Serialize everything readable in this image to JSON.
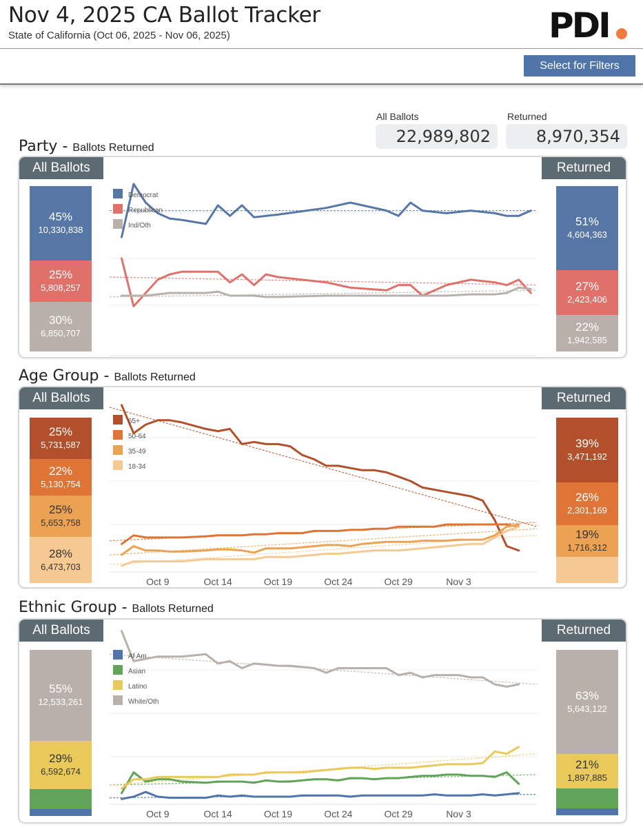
{
  "header": {
    "title": "Nov 4, 2025 CA Ballot Tracker",
    "subtitle": "State of California (Oct 06, 2025 - Nov 06, 2025)",
    "logo_text": "PDI"
  },
  "filter_button": "Select for Filters",
  "kpis": {
    "all_label": "All Ballots",
    "all_value": "22,989,802",
    "returned_label": "Returned",
    "returned_value": "8,970,354"
  },
  "colors": {
    "accent": "#4e74a8",
    "tag_bg": "#5c6a72",
    "logo_dot": "#f07b3f"
  },
  "sections": [
    {
      "title": "Party",
      "subtitle": "Ballots Returned",
      "all_tag": "All Ballots",
      "returned_tag": "Returned",
      "all_segments": [
        {
          "pct": "45%",
          "count": "10,330,838",
          "color": "#5677a6",
          "share": 0.45
        },
        {
          "pct": "25%",
          "count": "5,808,257",
          "color": "#e0706a",
          "share": 0.25
        },
        {
          "pct": "30%",
          "count": "6,850,707",
          "color": "#b9b0ab",
          "share": 0.3
        }
      ],
      "returned_segments": [
        {
          "pct": "51%",
          "count": "4,604,363",
          "color": "#5677a6",
          "share": 0.51
        },
        {
          "pct": "27%",
          "count": "2,423,406",
          "color": "#e0706a",
          "share": 0.27
        },
        {
          "pct": "22%",
          "count": "1,942,585",
          "color": "#b9b0ab",
          "share": 0.22
        }
      ]
    },
    {
      "title": "Age Group",
      "subtitle": "Ballots Returned",
      "all_tag": "All Ballots",
      "returned_tag": "Returned",
      "all_segments": [
        {
          "pct": "25%",
          "count": "5,731,587",
          "color": "#b3502c",
          "share": 0.25
        },
        {
          "pct": "22%",
          "count": "5,130,754",
          "color": "#de7436",
          "share": 0.22
        },
        {
          "pct": "25%",
          "count": "5,653,758",
          "color": "#eca253",
          "share": 0.25
        },
        {
          "pct": "28%",
          "count": "6,473,703",
          "color": "#f6c992",
          "share": 0.28
        }
      ],
      "returned_segments": [
        {
          "pct": "39%",
          "count": "3,471,192",
          "color": "#b3502c",
          "share": 0.39
        },
        {
          "pct": "26%",
          "count": "2,301,169",
          "color": "#de7436",
          "share": 0.26
        },
        {
          "pct": "19%",
          "count": "1,716,312",
          "color": "#eca253",
          "share": 0.19
        },
        {
          "pct": "",
          "count": "",
          "color": "#f6c992",
          "share": 0.16
        }
      ]
    },
    {
      "title": "Ethnic Group",
      "subtitle": "Ballots Returned",
      "all_tag": "All Ballots",
      "returned_tag": "Returned",
      "all_segments": [
        {
          "pct": "55%",
          "count": "12,533,261",
          "color": "#b9b0ab",
          "share": 0.55
        },
        {
          "pct": "29%",
          "count": "6,592,674",
          "color": "#e9c95a",
          "share": 0.29
        },
        {
          "pct": "",
          "count": "",
          "color": "#62a35a",
          "share": 0.12
        },
        {
          "pct": "",
          "count": "",
          "color": "#4f75ab",
          "share": 0.04
        }
      ],
      "returned_segments": [
        {
          "pct": "63%",
          "count": "5,643,122",
          "color": "#b9b0ab",
          "share": 0.63
        },
        {
          "pct": "21%",
          "count": "1,897,885",
          "color": "#e9c95a",
          "share": 0.21
        },
        {
          "pct": "",
          "count": "",
          "color": "#62a35a",
          "share": 0.12
        },
        {
          "pct": "",
          "count": "",
          "color": "#4f75ab",
          "share": 0.04
        }
      ]
    }
  ],
  "chart_data": [
    {
      "type": "line",
      "title": "Party",
      "x": [
        6,
        7,
        8,
        9,
        10,
        11,
        13,
        14,
        15,
        16,
        17,
        18,
        19,
        23,
        25,
        28,
        29,
        30,
        31,
        33,
        35,
        37,
        38,
        39,
        40
      ],
      "xticks": [
        "Oct 9",
        "Oct 14",
        "Oct 19",
        "Oct 24",
        "Oct 29",
        "Nov 3"
      ],
      "tick_positions": [
        9,
        14,
        19,
        24,
        29,
        34
      ],
      "ylim": [
        0,
        70
      ],
      "series": [
        {
          "name": "Democrat",
          "color": "#5677a6",
          "values": [
            43,
            63,
            56,
            52,
            50,
            49.5,
            48,
            55,
            51,
            55,
            50.5,
            51,
            51.5,
            54,
            56,
            53,
            51,
            56,
            53,
            52,
            53,
            52,
            51,
            51,
            53
          ]
        },
        {
          "name": "Republican",
          "color": "#e0706a",
          "values": [
            35,
            17,
            22,
            27,
            29,
            30,
            30,
            30,
            26,
            29,
            25,
            29,
            28,
            26,
            24,
            23,
            25,
            25,
            21,
            25,
            27,
            26,
            25,
            27,
            22
          ]
        },
        {
          "name": "Ind/Oth",
          "color": "#b9b0ab",
          "values": [
            21,
            21,
            21,
            21.5,
            22,
            22,
            22,
            22.5,
            21,
            21,
            21,
            20.5,
            20.5,
            21,
            21,
            21,
            21,
            21,
            21,
            21,
            21.5,
            21.5,
            22,
            24,
            23.5
          ]
        }
      ],
      "trends": [
        {
          "name": "Democrat",
          "values": [
            53,
            53
          ]
        },
        {
          "name": "Republican",
          "values": [
            28,
            25
          ]
        },
        {
          "name": "Ind/Oth",
          "values": [
            20.5,
            23
          ]
        }
      ]
    },
    {
      "type": "line",
      "title": "Age Group",
      "x": [
        6,
        7,
        8,
        9,
        10,
        11,
        13,
        14,
        15,
        16,
        17,
        18,
        19,
        20,
        21,
        22,
        23,
        24,
        25,
        26,
        27,
        28,
        29,
        30,
        31,
        32,
        33,
        34,
        35,
        36,
        37,
        38,
        39
      ],
      "xticks": [
        "Oct 9",
        "Oct 14",
        "Oct 19",
        "Oct 24",
        "Oct 29",
        "Nov 3"
      ],
      "tick_positions": [
        9,
        14,
        19,
        24,
        29,
        34
      ],
      "ylim": [
        0,
        80
      ],
      "series": [
        {
          "name": "65+",
          "color": "#b3502c",
          "values": [
            75,
            62,
            66,
            68,
            68,
            67,
            64,
            63,
            64,
            57,
            58,
            57,
            57,
            56,
            52,
            50,
            47,
            47,
            46,
            45,
            45,
            44,
            42,
            40,
            37,
            36,
            35,
            34,
            33,
            31,
            22,
            10,
            8
          ]
        },
        {
          "name": "50-64",
          "color": "#de7436",
          "values": [
            11,
            15,
            14,
            14,
            14,
            14,
            14.5,
            15,
            15,
            15,
            15.5,
            15.5,
            16,
            16,
            16,
            17,
            17,
            17,
            17.5,
            17.5,
            18,
            18,
            19,
            19,
            19,
            19,
            20,
            20,
            20,
            20,
            20,
            20,
            19
          ]
        },
        {
          "name": "35-49",
          "color": "#eca253",
          "values": [
            6,
            10,
            8,
            8,
            7.5,
            7.5,
            8,
            8.5,
            8.5,
            8,
            7,
            9,
            9,
            9,
            9.5,
            10,
            10.5,
            10.5,
            10,
            11,
            11.5,
            12,
            12,
            12,
            12.5,
            12.5,
            12.5,
            13,
            13,
            13,
            15,
            19,
            20
          ]
        },
        {
          "name": "18-34",
          "color": "#f6c992",
          "values": [
            1,
            3,
            3,
            3,
            3,
            3,
            4,
            4,
            4,
            4,
            4,
            5,
            5,
            5,
            5.5,
            6,
            6.5,
            6.5,
            7,
            7.5,
            8,
            8,
            8,
            8.5,
            9,
            9.5,
            10,
            10.5,
            11,
            11,
            14,
            17,
            19
          ]
        }
      ],
      "trends": [
        {
          "name": "65+",
          "values": [
            74,
            19
          ]
        },
        {
          "name": "50-64",
          "values": [
            12.5,
            21
          ]
        },
        {
          "name": "35-49",
          "values": [
            6,
            18
          ]
        },
        {
          "name": "18-34",
          "values": [
            1.5,
            15
          ]
        }
      ]
    },
    {
      "type": "line",
      "title": "Ethnic Group",
      "x": [
        6,
        7,
        8,
        9,
        10,
        11,
        13,
        14,
        15,
        16,
        17,
        18,
        19,
        20,
        21,
        22,
        23,
        24,
        25,
        26,
        27,
        28,
        29,
        30,
        31,
        32,
        33,
        34,
        35,
        36,
        37,
        38,
        39
      ],
      "xticks": [
        "Oct 9",
        "Oct 14",
        "Oct 19",
        "Oct 24",
        "Oct 29",
        "Nov 3"
      ],
      "tick_positions": [
        9,
        14,
        19,
        24,
        29,
        34
      ],
      "ylim": [
        0,
        75
      ],
      "series": [
        {
          "name": "Af Am",
          "color": "#4f75ab",
          "values": [
            0.5,
            1.5,
            3.5,
            1.5,
            1,
            1,
            1,
            2,
            1.5,
            2,
            1.5,
            1.5,
            1.5,
            1.5,
            2,
            2,
            2,
            2,
            1.5,
            2,
            2,
            2,
            2,
            2,
            2,
            2.5,
            2,
            2,
            2,
            2.5,
            2,
            2.5,
            3
          ]
        },
        {
          "name": "Asian",
          "color": "#62a35a",
          "values": [
            3,
            12,
            8,
            9,
            9,
            8,
            7.5,
            8,
            8,
            8,
            7.5,
            8.5,
            8,
            8,
            8.5,
            9,
            9,
            8.5,
            9.5,
            9.5,
            9,
            9.5,
            9.5,
            10,
            10.5,
            10.5,
            11,
            11,
            10.5,
            10.5,
            10,
            12,
            7
          ]
        },
        {
          "name": "Latino",
          "color": "#e9c95a",
          "values": [
            5,
            9,
            9,
            10,
            10,
            10,
            10,
            10,
            11,
            11,
            11,
            12,
            12,
            12,
            12,
            12.5,
            13,
            13.5,
            14,
            14,
            13.5,
            14,
            14,
            14,
            14.5,
            15,
            15.5,
            15.5,
            15.5,
            16,
            21,
            20,
            23
          ]
        },
        {
          "name": "White/Oth",
          "color": "#b9b0ab",
          "values": [
            73,
            60,
            61,
            62,
            62,
            62,
            63,
            59,
            60,
            57,
            59,
            58.5,
            58,
            58,
            57.5,
            57,
            55,
            57,
            57,
            57,
            57,
            57,
            54,
            55,
            53,
            54,
            54,
            54,
            53,
            53,
            50,
            49,
            50
          ]
        }
      ],
      "trends": [
        {
          "name": "Af Am",
          "values": [
            1,
            2.5
          ]
        },
        {
          "name": "Asian",
          "values": [
            6.5,
            11
          ]
        },
        {
          "name": "Latino",
          "values": [
            6.5,
            20
          ]
        },
        {
          "name": "White/Oth",
          "values": [
            63,
            50
          ]
        }
      ]
    }
  ]
}
